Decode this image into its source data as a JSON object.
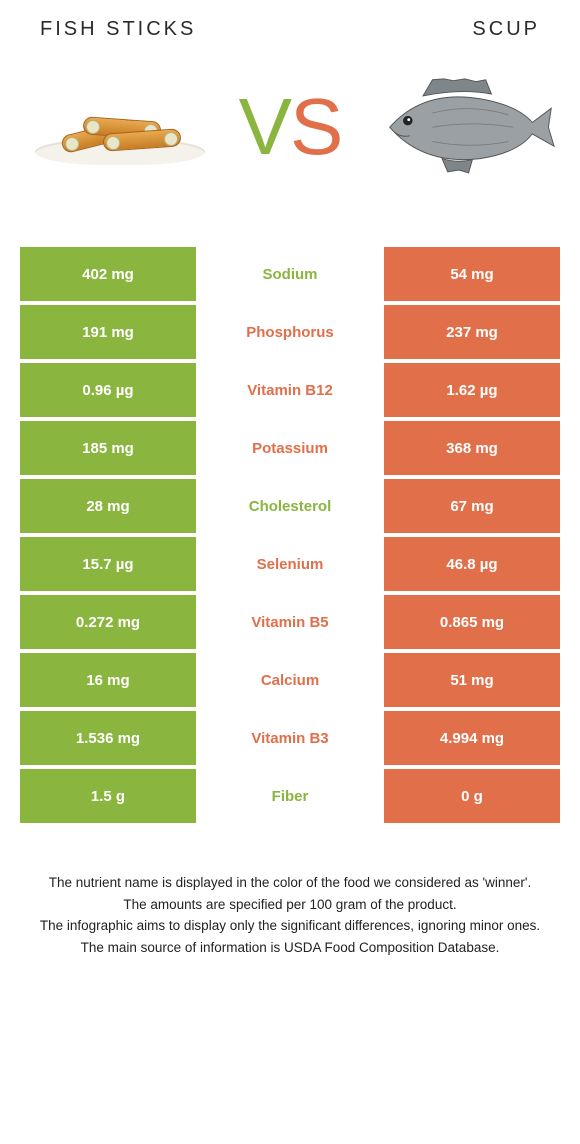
{
  "colors": {
    "left_food": "#8ab53f",
    "right_food": "#e16f4a",
    "vs_v": "#8ab53f",
    "vs_s": "#e16f4a",
    "bg": "#ffffff"
  },
  "header": {
    "left_title": "FISH STICKS",
    "right_title": "SCUP"
  },
  "vs": {
    "v": "V",
    "s": "S"
  },
  "rows": [
    {
      "left": "402 mg",
      "name": "Sodium",
      "right": "54 mg",
      "winner": "left"
    },
    {
      "left": "191 mg",
      "name": "Phosphorus",
      "right": "237 mg",
      "winner": "right"
    },
    {
      "left": "0.96 µg",
      "name": "Vitamin B12",
      "right": "1.62 µg",
      "winner": "right"
    },
    {
      "left": "185 mg",
      "name": "Potassium",
      "right": "368 mg",
      "winner": "right"
    },
    {
      "left": "28 mg",
      "name": "Cholesterol",
      "right": "67 mg",
      "winner": "left"
    },
    {
      "left": "15.7 µg",
      "name": "Selenium",
      "right": "46.8 µg",
      "winner": "right"
    },
    {
      "left": "0.272 mg",
      "name": "Vitamin B5",
      "right": "0.865 mg",
      "winner": "right"
    },
    {
      "left": "16 mg",
      "name": "Calcium",
      "right": "51 mg",
      "winner": "right"
    },
    {
      "left": "1.536 mg",
      "name": "Vitamin B3",
      "right": "4.994 mg",
      "winner": "right"
    },
    {
      "left": "1.5 g",
      "name": "Fiber",
      "right": "0 g",
      "winner": "left"
    }
  ],
  "footnotes": {
    "l1": "The nutrient name is displayed in the color of the food we considered as 'winner'.",
    "l2": "The amounts are specified per 100 gram of the product.",
    "l3": "The infographic aims to display only the significant differences, ignoring minor ones.",
    "l4": "The main source of information is USDA Food Composition Database."
  }
}
